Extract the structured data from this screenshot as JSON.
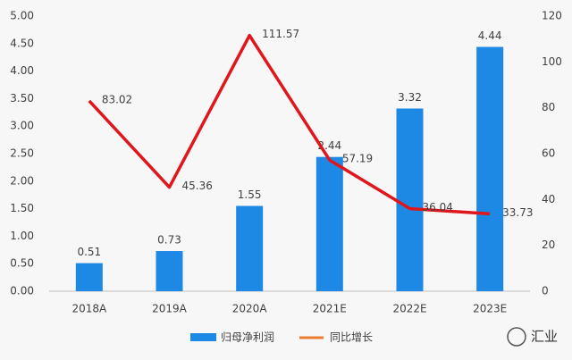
{
  "chart_data": {
    "type": "bar-line",
    "categories": [
      "2018A",
      "2019A",
      "2020A",
      "2021E",
      "2022E",
      "2023E"
    ],
    "series": [
      {
        "name": "归母净利润",
        "type": "bar",
        "color": "#1e88e5",
        "values": [
          0.51,
          0.73,
          1.55,
          2.44,
          3.32,
          4.44
        ]
      },
      {
        "name": "同比增长",
        "type": "line",
        "axis": "y2",
        "color": "#e0161c",
        "values": [
          83.02,
          45.36,
          111.57,
          57.19,
          36.04,
          33.73
        ]
      }
    ],
    "ylim": [
      0,
      5
    ],
    "yticks": [
      {
        "value": 0,
        "label": "0.00"
      },
      {
        "value": 0.5,
        "label": "0.50"
      },
      {
        "value": 1,
        "label": "1.00"
      },
      {
        "value": 1.5,
        "label": "1.50"
      },
      {
        "value": 2,
        "label": "2.00"
      },
      {
        "value": 2.5,
        "label": "2.50"
      },
      {
        "value": 3,
        "label": "3.00"
      },
      {
        "value": 3.5,
        "label": "3.50"
      },
      {
        "value": 4,
        "label": "4.00"
      },
      {
        "value": 4.5,
        "label": "4.50"
      },
      {
        "value": 5,
        "label": "5.00"
      }
    ],
    "y2lim": [
      0,
      120
    ],
    "y2ticks": [
      0,
      20,
      40,
      60,
      80,
      100,
      120
    ],
    "grid": false,
    "legend": "bottom"
  },
  "watermark": "汇业"
}
